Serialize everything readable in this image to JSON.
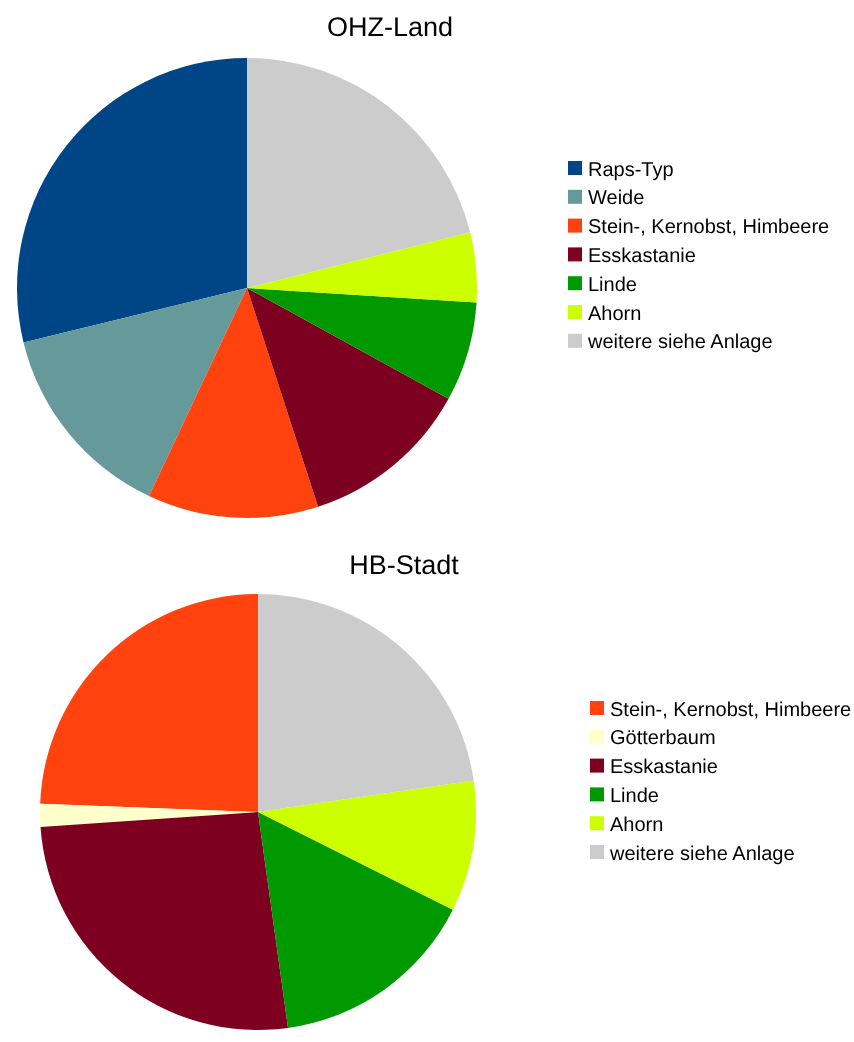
{
  "chart_data": [
    {
      "type": "pie",
      "title": "OHZ-Land",
      "categories": [
        "Raps-Typ",
        "Weide",
        "Stein-, Kernobst, Himbeere",
        "Esskastanie",
        "Linde",
        "Ahorn",
        "weitere siehe Anlage"
      ],
      "values": [
        28.8,
        14.2,
        12.0,
        12.0,
        7.0,
        4.9,
        21.1
      ],
      "colors": [
        "#004586",
        "#669999",
        "#ff420e",
        "#7e0021",
        "#009900",
        "#ccff00",
        "#cccccc"
      ],
      "legend": "right"
    },
    {
      "type": "pie",
      "title": "HB-Stadt",
      "categories": [
        "Stein-, Kernobst, Himbeere",
        "Götterbaum",
        "Esskastanie",
        "Linde",
        "Ahorn",
        "weitere siehe Anlage"
      ],
      "values": [
        24.4,
        1.7,
        26.1,
        15.4,
        9.7,
        22.7
      ],
      "colors": [
        "#ff420e",
        "#ffffcc",
        "#7e0021",
        "#009900",
        "#ccff00",
        "#cccccc"
      ],
      "legend": "right"
    }
  ]
}
